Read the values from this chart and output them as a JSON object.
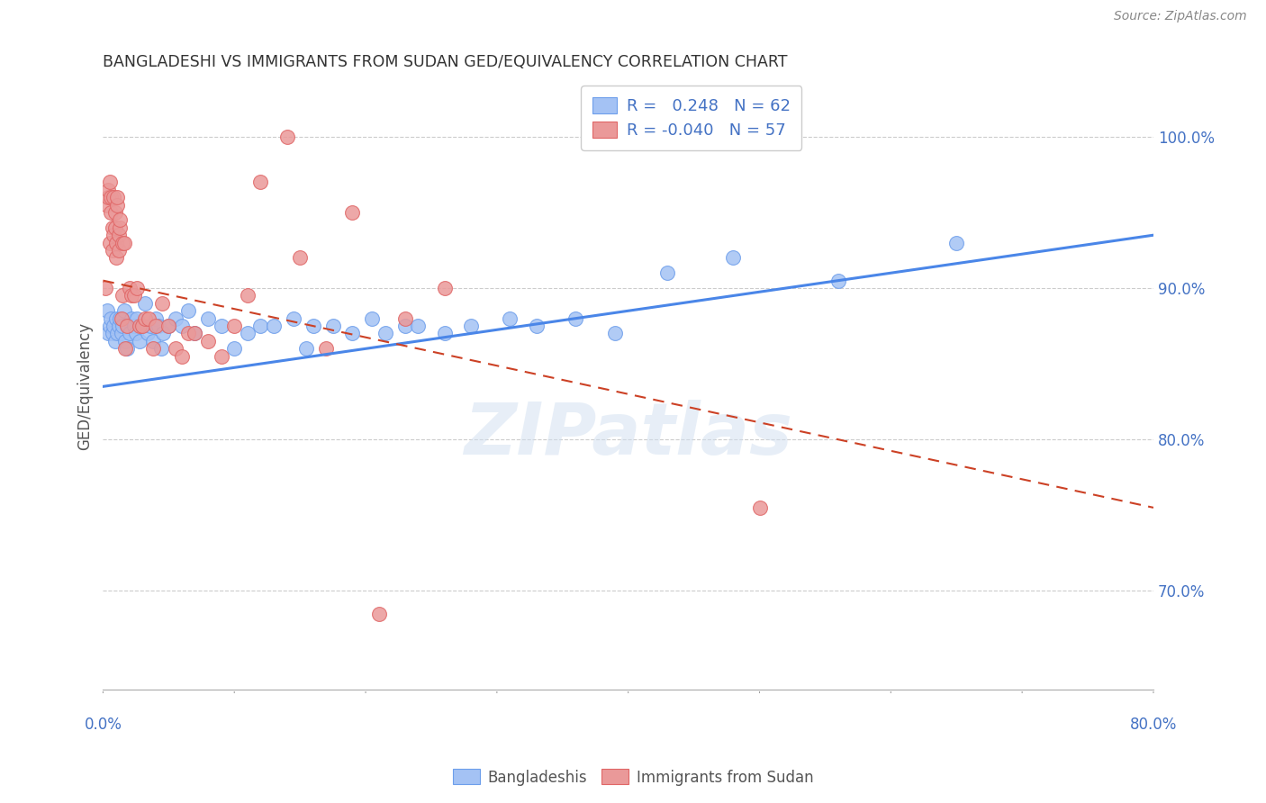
{
  "title": "BANGLADESHI VS IMMIGRANTS FROM SUDAN GED/EQUIVALENCY CORRELATION CHART",
  "source": "Source: ZipAtlas.com",
  "ylabel": "GED/Equivalency",
  "ylabel_ticks": [
    "70.0%",
    "80.0%",
    "90.0%",
    "100.0%"
  ],
  "ylabel_tick_vals": [
    0.7,
    0.8,
    0.9,
    1.0
  ],
  "xlim": [
    0.0,
    0.8
  ],
  "ylim": [
    0.635,
    1.035
  ],
  "blue_color": "#a4c2f4",
  "blue_edge": "#6d9eeb",
  "pink_color": "#ea9999",
  "pink_edge": "#e06666",
  "trend_blue": "#4a86e8",
  "trend_pink": "#cc4125",
  "legend_R1": "0.248",
  "legend_N1": "62",
  "legend_R2": "-0.040",
  "legend_N2": "57",
  "blue_scatter_x": [
    0.003,
    0.004,
    0.005,
    0.006,
    0.007,
    0.008,
    0.009,
    0.01,
    0.011,
    0.012,
    0.013,
    0.014,
    0.015,
    0.016,
    0.017,
    0.018,
    0.019,
    0.02,
    0.022,
    0.024,
    0.025,
    0.026,
    0.028,
    0.03,
    0.032,
    0.034,
    0.036,
    0.038,
    0.04,
    0.042,
    0.044,
    0.046,
    0.05,
    0.055,
    0.06,
    0.065,
    0.07,
    0.08,
    0.09,
    0.1,
    0.11,
    0.12,
    0.13,
    0.145,
    0.155,
    0.16,
    0.175,
    0.19,
    0.205,
    0.215,
    0.23,
    0.24,
    0.26,
    0.28,
    0.31,
    0.33,
    0.36,
    0.39,
    0.43,
    0.48,
    0.56,
    0.65
  ],
  "blue_scatter_y": [
    0.885,
    0.87,
    0.875,
    0.88,
    0.87,
    0.875,
    0.865,
    0.88,
    0.87,
    0.875,
    0.88,
    0.87,
    0.875,
    0.885,
    0.865,
    0.86,
    0.875,
    0.87,
    0.88,
    0.875,
    0.87,
    0.88,
    0.865,
    0.875,
    0.89,
    0.87,
    0.875,
    0.865,
    0.88,
    0.875,
    0.86,
    0.87,
    0.875,
    0.88,
    0.875,
    0.885,
    0.87,
    0.88,
    0.875,
    0.86,
    0.87,
    0.875,
    0.875,
    0.88,
    0.86,
    0.875,
    0.875,
    0.87,
    0.88,
    0.87,
    0.875,
    0.875,
    0.87,
    0.875,
    0.88,
    0.875,
    0.88,
    0.87,
    0.91,
    0.92,
    0.905,
    0.93
  ],
  "pink_scatter_x": [
    0.002,
    0.003,
    0.004,
    0.004,
    0.005,
    0.005,
    0.006,
    0.006,
    0.007,
    0.007,
    0.008,
    0.008,
    0.009,
    0.009,
    0.01,
    0.01,
    0.011,
    0.011,
    0.012,
    0.012,
    0.013,
    0.013,
    0.014,
    0.015,
    0.015,
    0.016,
    0.017,
    0.018,
    0.02,
    0.022,
    0.024,
    0.026,
    0.028,
    0.03,
    0.032,
    0.035,
    0.038,
    0.04,
    0.045,
    0.05,
    0.055,
    0.06,
    0.065,
    0.07,
    0.08,
    0.09,
    0.1,
    0.11,
    0.12,
    0.14,
    0.15,
    0.17,
    0.19,
    0.21,
    0.23,
    0.26,
    0.5
  ],
  "pink_scatter_y": [
    0.9,
    0.955,
    0.96,
    0.965,
    0.93,
    0.97,
    0.95,
    0.96,
    0.94,
    0.925,
    0.96,
    0.935,
    0.94,
    0.95,
    0.92,
    0.93,
    0.955,
    0.96,
    0.935,
    0.925,
    0.94,
    0.945,
    0.88,
    0.895,
    0.93,
    0.93,
    0.86,
    0.875,
    0.9,
    0.895,
    0.895,
    0.9,
    0.875,
    0.875,
    0.88,
    0.88,
    0.86,
    0.875,
    0.89,
    0.875,
    0.86,
    0.855,
    0.87,
    0.87,
    0.865,
    0.855,
    0.875,
    0.895,
    0.97,
    1.0,
    0.92,
    0.86,
    0.95,
    0.685,
    0.88,
    0.9,
    0.755
  ]
}
